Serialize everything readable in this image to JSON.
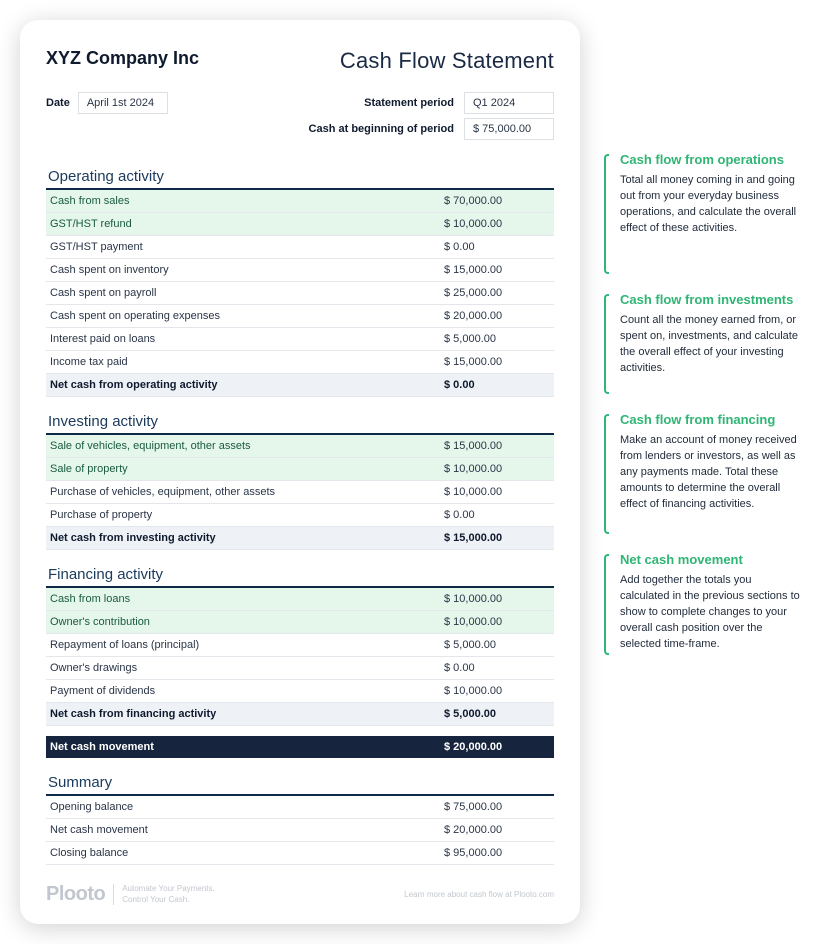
{
  "company": "XYZ Company Inc",
  "title": "Cash Flow Statement",
  "date_label": "Date",
  "date_value": "April 1st 2024",
  "period_label": "Statement period",
  "period_value": "Q1 2024",
  "begin_label": "Cash at beginning of period",
  "begin_value": "$ 75,000.00",
  "colors": {
    "section_rule": "#0e2a47",
    "green_row": "#e5f6ea",
    "total_row": "#eef2f6",
    "dark_row": "#17243d",
    "accent": "#2fb574"
  },
  "sections": {
    "operating": {
      "heading": "Operating activity",
      "rows": [
        {
          "label": "Cash from sales",
          "value": "$ 70,000.00",
          "green": true
        },
        {
          "label": "GST/HST refund",
          "value": "$ 10,000.00",
          "green": true
        },
        {
          "label": "GST/HST payment",
          "value": "$ 0.00"
        },
        {
          "label": "Cash spent on inventory",
          "value": "$ 15,000.00"
        },
        {
          "label": "Cash spent on payroll",
          "value": "$ 25,000.00"
        },
        {
          "label": "Cash spent on operating expenses",
          "value": "$ 20,000.00"
        },
        {
          "label": "Interest paid on loans",
          "value": "$ 5,000.00"
        },
        {
          "label": "Income tax paid",
          "value": "$ 15,000.00"
        }
      ],
      "total_label": "Net cash from operating activity",
      "total_value": "$ 0.00"
    },
    "investing": {
      "heading": "Investing activity",
      "rows": [
        {
          "label": "Sale of vehicles, equipment, other assets",
          "value": "$ 15,000.00",
          "green": true
        },
        {
          "label": "Sale of property",
          "value": "$ 10,000.00",
          "green": true
        },
        {
          "label": "Purchase of vehicles, equipment, other assets",
          "value": "$ 10,000.00"
        },
        {
          "label": "Purchase of property",
          "value": "$ 0.00"
        }
      ],
      "total_label": "Net cash from investing activity",
      "total_value": "$ 15,000.00"
    },
    "financing": {
      "heading": "Financing activity",
      "rows": [
        {
          "label": "Cash from loans",
          "value": "$ 10,000.00",
          "green": true
        },
        {
          "label": "Owner's contribution",
          "value": "$ 10,000.00",
          "green": true
        },
        {
          "label": "Repayment of loans (principal)",
          "value": "$ 5,000.00"
        },
        {
          "label": "Owner's drawings",
          "value": "$ 0.00"
        },
        {
          "label": "Payment of dividends",
          "value": "$ 10,000.00"
        }
      ],
      "total_label": "Net cash from financing activity",
      "total_value": "$ 5,000.00"
    }
  },
  "net_movement_label": "Net cash movement",
  "net_movement_value": "$ 20,000.00",
  "summary": {
    "heading": "Summary",
    "rows": [
      {
        "label": "Opening balance",
        "value": "$ 75,000.00"
      },
      {
        "label": "Net cash movement",
        "value": "$ 20,000.00"
      },
      {
        "label": "Closing balance",
        "value": "$ 95,000.00"
      }
    ]
  },
  "footer": {
    "logo": "Plooto",
    "tagline1": "Automate Your Payments.",
    "tagline2": "Control Your Cash.",
    "right": "Learn more about cash flow at Plooto.com"
  },
  "annotations": [
    {
      "title": "Cash flow from operations",
      "body": "Total all money coming in and going out from your everyday business operations, and calculate the overall effect of these activities."
    },
    {
      "title": "Cash flow from investments",
      "body": "Count all the money earned from, or spent on, investments, and calculate the overall effect of your investing activities."
    },
    {
      "title": "Cash flow from financing",
      "body": "Make an account of money received from lenders or investors, as well as any payments made. Total these amounts to determine the overall effect of financing activities."
    },
    {
      "title": "Net cash movement",
      "body": "Add together the totals you calculated in the previous sections to show to complete changes to your overall cash position over the selected time-frame."
    }
  ]
}
